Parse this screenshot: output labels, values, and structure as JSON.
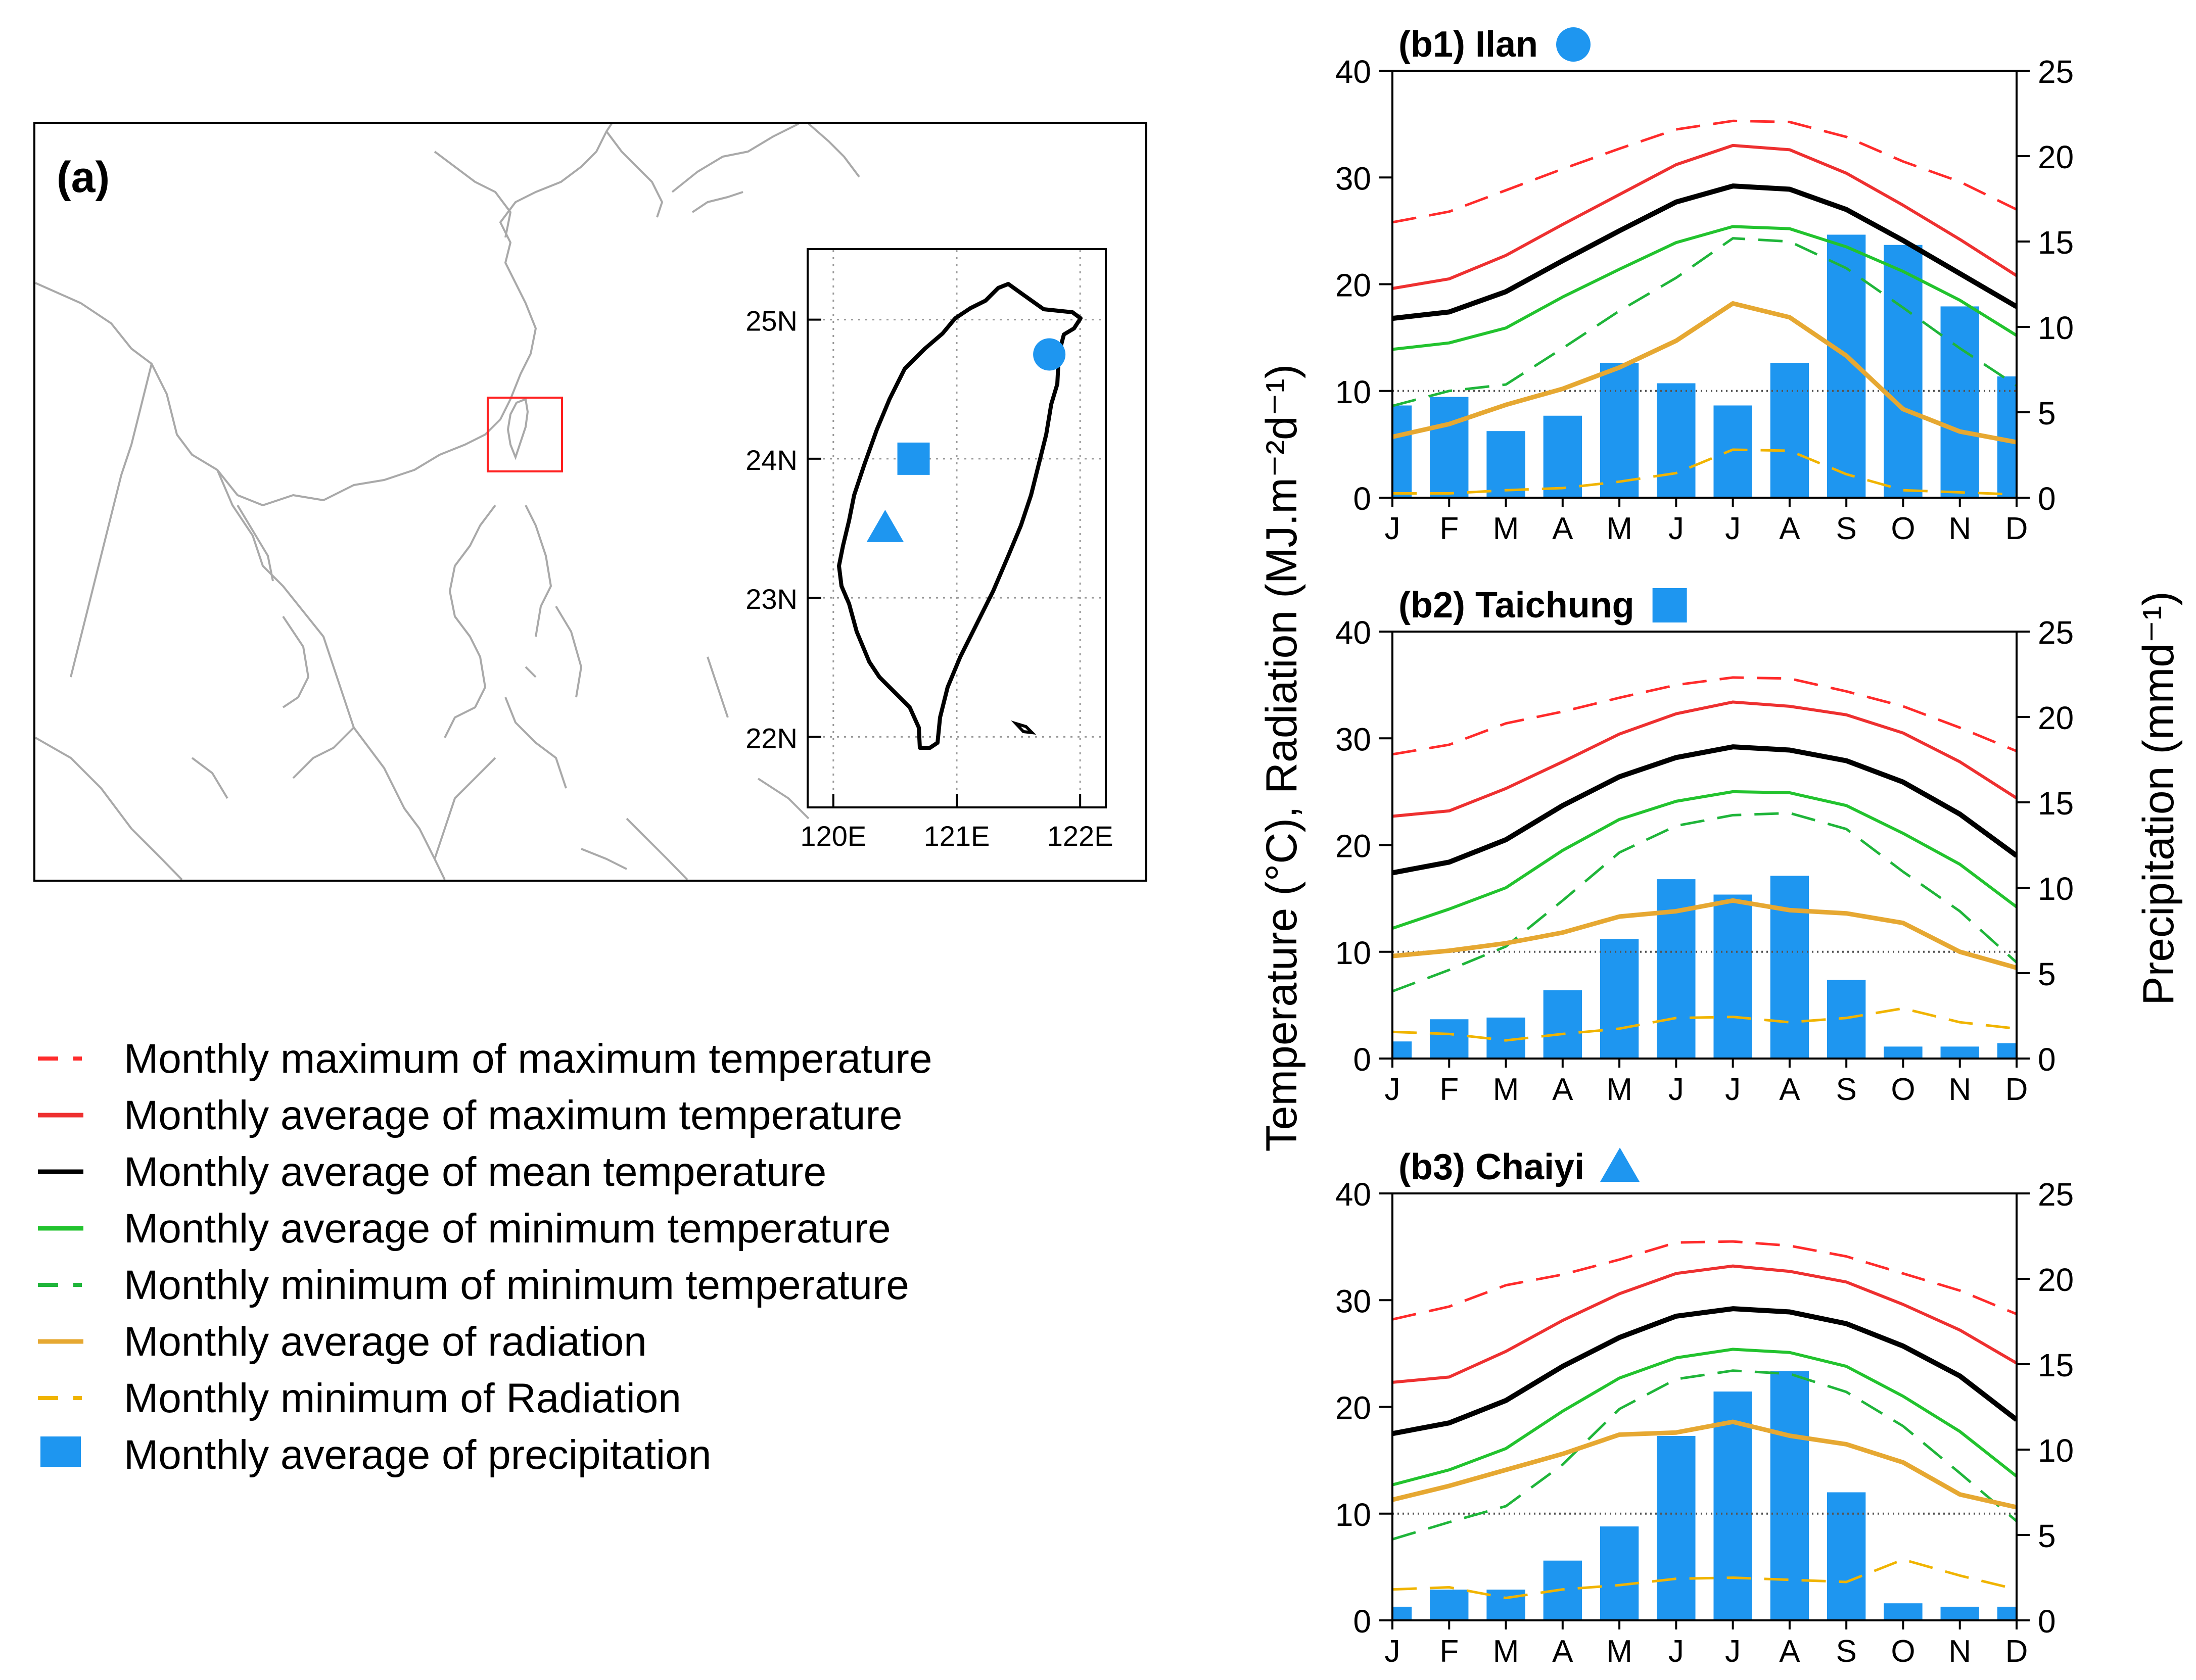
{
  "colors": {
    "max_max": "#ff2b2b",
    "avg_max": "#ee3030",
    "avg_mean": "#000000",
    "avg_min": "#22c32e",
    "min_min": "#1fb53a",
    "rad_avg": "#e6a832",
    "rad_min": "#f0b400",
    "precip": "#1e96f0",
    "map_coast": "#a9a9a9",
    "taiwan": "#000000",
    "box": "#ff2020",
    "ref_line": "#555555"
  },
  "map": {
    "panel_label": "(a)",
    "inset": {
      "lat_labels": [
        "25N",
        "24N",
        "23N",
        "22N"
      ],
      "lon_labels": [
        "120E",
        "121E",
        "122E"
      ],
      "lat_values": [
        25,
        24,
        23,
        22
      ],
      "lon_values": [
        120,
        121,
        122
      ],
      "lat_range": [
        21.5,
        25.5
      ],
      "lon_range": [
        119.8,
        122.2
      ],
      "stations": [
        {
          "name": "Ilan",
          "marker": "circle",
          "lon": 121.75,
          "lat": 24.75
        },
        {
          "name": "Taichung",
          "marker": "square",
          "lon": 120.65,
          "lat": 24.0
        },
        {
          "name": "Chaiyi",
          "marker": "triangle",
          "lon": 120.42,
          "lat": 23.5
        }
      ]
    }
  },
  "legend": {
    "items": [
      {
        "label": "Monthly maximum of maximum temperature",
        "style": "dash",
        "color_key": "max_max"
      },
      {
        "label": "Monthly average of maximum temperature",
        "style": "solid",
        "color_key": "avg_max"
      },
      {
        "label": "Monthly average of mean temperature",
        "style": "solid",
        "color_key": "avg_mean"
      },
      {
        "label": "Monthly average of minimum temperature",
        "style": "solid",
        "color_key": "avg_min"
      },
      {
        "label": "Monthly minimum of minimum temperature",
        "style": "dash",
        "color_key": "min_min"
      },
      {
        "label": "Monthly average of radiation",
        "style": "solid",
        "color_key": "rad_avg"
      },
      {
        "label": "Monthly minimum of Radiation",
        "style": "dash",
        "color_key": "rad_min"
      },
      {
        "label": "Monthly average of precipitation",
        "style": "box",
        "color_key": "precip"
      }
    ]
  },
  "axis_titles": {
    "left": "Temperature (°C),  Radiation (MJ.m⁻²d⁻¹)",
    "right": "Precipitation (mmd⁻¹)"
  },
  "chart_data": [
    {
      "type": "bar+line",
      "title": "(b1)  Ilan",
      "marker": "circle",
      "categories": [
        "J",
        "F",
        "M",
        "A",
        "M",
        "J",
        "J",
        "A",
        "S",
        "O",
        "N",
        "D"
      ],
      "ylim_left": [
        0,
        40
      ],
      "ylim_right": [
        0,
        25
      ],
      "yticks_left": [
        0,
        10,
        20,
        30,
        40
      ],
      "yticks_right": [
        0,
        5,
        10,
        15,
        20,
        25
      ],
      "reference_line_left": 10,
      "series": [
        {
          "name": "Monthly maximum of maximum temperature",
          "axis": "left",
          "style": "dash",
          "color_key": "max_max",
          "values": [
            25.8,
            26.8,
            28.8,
            30.8,
            32.7,
            34.5,
            35.3,
            35.2,
            33.8,
            31.5,
            29.6,
            27.0
          ]
        },
        {
          "name": "Monthly average of maximum temperature",
          "axis": "left",
          "style": "solid",
          "color_key": "avg_max",
          "values": [
            19.6,
            20.5,
            22.7,
            25.6,
            28.4,
            31.2,
            33.0,
            32.6,
            30.4,
            27.4,
            24.2,
            20.8
          ]
        },
        {
          "name": "Monthly average of mean temperature",
          "axis": "left",
          "style": "solid",
          "color_key": "avg_mean",
          "values": [
            16.8,
            17.4,
            19.3,
            22.2,
            25.0,
            27.7,
            29.2,
            28.9,
            27.0,
            24.1,
            21.0,
            17.9
          ]
        },
        {
          "name": "Monthly average of minimum temperature",
          "axis": "left",
          "style": "solid",
          "color_key": "avg_min",
          "values": [
            13.9,
            14.5,
            15.9,
            18.8,
            21.4,
            23.9,
            25.4,
            25.2,
            23.5,
            21.2,
            18.5,
            15.2
          ]
        },
        {
          "name": "Monthly minimum of minimum temperature",
          "axis": "left",
          "style": "dash",
          "color_key": "min_min",
          "values": [
            8.6,
            10.0,
            10.6,
            14.0,
            17.5,
            20.6,
            24.3,
            24.0,
            21.5,
            17.8,
            14.0,
            10.5
          ]
        },
        {
          "name": "Monthly average of radiation",
          "axis": "left",
          "style": "solid",
          "color_key": "rad_avg",
          "values": [
            5.7,
            6.9,
            8.7,
            10.2,
            12.2,
            14.7,
            18.2,
            16.9,
            13.3,
            8.3,
            6.2,
            5.2
          ]
        },
        {
          "name": "Monthly minimum of Radiation",
          "axis": "left",
          "style": "dash",
          "color_key": "rad_min",
          "values": [
            0.4,
            0.4,
            0.7,
            0.9,
            1.5,
            2.3,
            4.5,
            4.4,
            2.2,
            0.7,
            0.5,
            0.3
          ]
        },
        {
          "name": "Monthly average of precipitation",
          "axis": "right",
          "style": "bar",
          "color_key": "precip",
          "values": [
            5.4,
            5.9,
            3.9,
            4.8,
            7.9,
            6.7,
            5.4,
            7.9,
            15.4,
            14.8,
            11.2,
            7.1
          ]
        }
      ]
    },
    {
      "type": "bar+line",
      "title": "(b2)  Taichung",
      "marker": "square",
      "categories": [
        "J",
        "F",
        "M",
        "A",
        "M",
        "J",
        "J",
        "A",
        "S",
        "O",
        "N",
        "D"
      ],
      "ylim_left": [
        0,
        40
      ],
      "ylim_right": [
        0,
        25
      ],
      "yticks_left": [
        0,
        10,
        20,
        30,
        40
      ],
      "yticks_right": [
        0,
        5,
        10,
        15,
        20,
        25
      ],
      "reference_line_left": 10,
      "series": [
        {
          "name": "Monthly maximum of maximum temperature",
          "axis": "left",
          "style": "dash",
          "color_key": "max_max",
          "values": [
            28.5,
            29.4,
            31.4,
            32.5,
            33.8,
            35.0,
            35.7,
            35.6,
            34.4,
            33.0,
            31.0,
            28.8
          ]
        },
        {
          "name": "Monthly average of maximum temperature",
          "axis": "left",
          "style": "solid",
          "color_key": "avg_max",
          "values": [
            22.7,
            23.2,
            25.3,
            27.8,
            30.4,
            32.3,
            33.4,
            33.0,
            32.2,
            30.5,
            27.8,
            24.4
          ]
        },
        {
          "name": "Monthly average of mean temperature",
          "axis": "left",
          "style": "solid",
          "color_key": "avg_mean",
          "values": [
            17.4,
            18.4,
            20.5,
            23.7,
            26.4,
            28.2,
            29.2,
            28.9,
            27.9,
            25.9,
            22.9,
            19.0
          ]
        },
        {
          "name": "Monthly average of minimum temperature",
          "axis": "left",
          "style": "solid",
          "color_key": "avg_min",
          "values": [
            12.2,
            14.0,
            16.0,
            19.5,
            22.4,
            24.1,
            25.0,
            24.9,
            23.7,
            21.1,
            18.2,
            14.2
          ]
        },
        {
          "name": "Monthly minimum of minimum temperature",
          "axis": "left",
          "style": "dash",
          "color_key": "min_min",
          "values": [
            6.3,
            8.3,
            10.5,
            14.8,
            19.3,
            21.8,
            22.8,
            23.0,
            21.5,
            17.5,
            13.8,
            9.0
          ]
        },
        {
          "name": "Monthly average of radiation",
          "axis": "left",
          "style": "solid",
          "color_key": "rad_avg",
          "values": [
            9.6,
            10.1,
            10.8,
            11.8,
            13.3,
            13.8,
            14.8,
            13.9,
            13.6,
            12.7,
            10.0,
            8.5
          ]
        },
        {
          "name": "Monthly minimum of Radiation",
          "axis": "left",
          "style": "dash",
          "color_key": "rad_min",
          "values": [
            2.5,
            2.3,
            1.7,
            2.3,
            2.8,
            3.8,
            3.9,
            3.4,
            3.8,
            4.7,
            3.4,
            2.8
          ]
        },
        {
          "name": "Monthly average of precipitation",
          "axis": "right",
          "style": "bar",
          "color_key": "precip",
          "values": [
            1.0,
            2.3,
            2.4,
            4.0,
            7.0,
            10.5,
            9.6,
            10.7,
            4.6,
            0.7,
            0.7,
            0.9
          ]
        }
      ]
    },
    {
      "type": "bar+line",
      "title": "(b3)  Chaiyi",
      "marker": "triangle",
      "categories": [
        "J",
        "F",
        "M",
        "A",
        "M",
        "J",
        "J",
        "A",
        "S",
        "O",
        "N",
        "D"
      ],
      "ylim_left": [
        0,
        40
      ],
      "ylim_right": [
        0,
        25
      ],
      "yticks_left": [
        0,
        10,
        20,
        30,
        40
      ],
      "yticks_right": [
        0,
        5,
        10,
        15,
        20,
        25
      ],
      "reference_line_left": 10,
      "series": [
        {
          "name": "Monthly maximum of maximum temperature",
          "axis": "left",
          "style": "dash",
          "color_key": "max_max",
          "values": [
            28.2,
            29.4,
            31.4,
            32.4,
            33.8,
            35.4,
            35.5,
            35.1,
            34.1,
            32.5,
            30.9,
            28.7
          ]
        },
        {
          "name": "Monthly average of maximum temperature",
          "axis": "left",
          "style": "solid",
          "color_key": "avg_max",
          "values": [
            22.3,
            22.8,
            25.2,
            28.1,
            30.6,
            32.5,
            33.2,
            32.7,
            31.7,
            29.6,
            27.2,
            24.1
          ]
        },
        {
          "name": "Monthly average of mean temperature",
          "axis": "left",
          "style": "solid",
          "color_key": "avg_mean",
          "values": [
            17.5,
            18.5,
            20.6,
            23.8,
            26.5,
            28.5,
            29.2,
            28.9,
            27.8,
            25.7,
            22.9,
            18.8
          ]
        },
        {
          "name": "Monthly average of minimum temperature",
          "axis": "left",
          "style": "solid",
          "color_key": "avg_min",
          "values": [
            12.7,
            14.1,
            16.1,
            19.6,
            22.7,
            24.6,
            25.4,
            25.1,
            23.8,
            21.0,
            17.7,
            13.5
          ]
        },
        {
          "name": "Monthly minimum of minimum temperature",
          "axis": "left",
          "style": "dash",
          "color_key": "min_min",
          "values": [
            7.6,
            9.2,
            10.7,
            14.6,
            19.8,
            22.6,
            23.4,
            23.1,
            21.4,
            18.2,
            13.8,
            9.3
          ]
        },
        {
          "name": "Monthly average of radiation",
          "axis": "left",
          "style": "solid",
          "color_key": "rad_avg",
          "values": [
            11.3,
            12.6,
            14.1,
            15.6,
            17.4,
            17.6,
            18.6,
            17.3,
            16.5,
            14.8,
            11.8,
            10.6
          ]
        },
        {
          "name": "Monthly minimum of Radiation",
          "axis": "left",
          "style": "dash",
          "color_key": "rad_min",
          "values": [
            2.9,
            3.1,
            2.1,
            2.9,
            3.3,
            3.9,
            4.0,
            3.8,
            3.6,
            5.7,
            4.2,
            2.9
          ]
        },
        {
          "name": "Monthly average of precipitation",
          "axis": "right",
          "style": "bar",
          "color_key": "precip",
          "values": [
            0.8,
            1.8,
            1.8,
            3.5,
            5.5,
            10.8,
            13.4,
            14.6,
            7.5,
            1.0,
            0.8,
            0.8
          ]
        }
      ]
    }
  ]
}
